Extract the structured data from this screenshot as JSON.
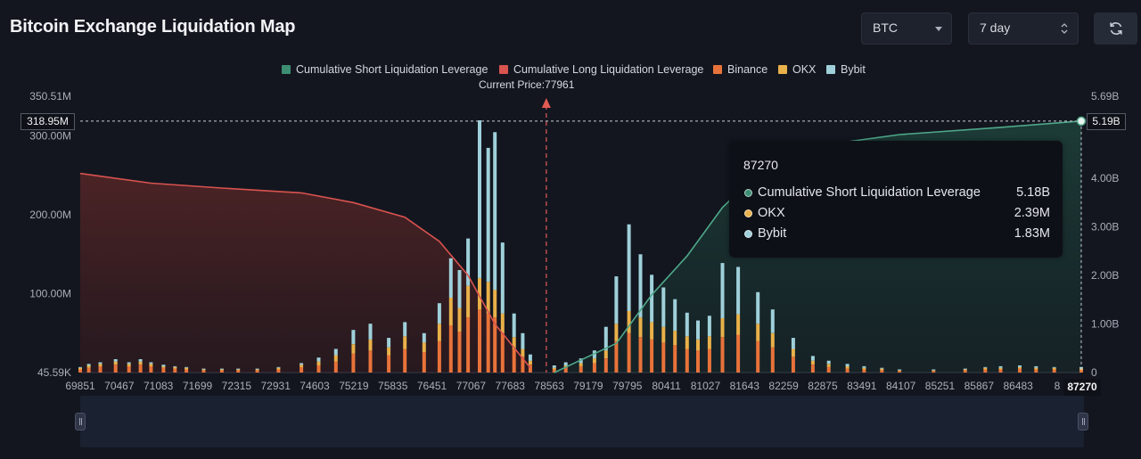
{
  "header": {
    "title": "Bitcoin Exchange Liquidation Map",
    "symbol_select": "BTC",
    "period_select": "7 day",
    "refresh_icon": "refresh-icon"
  },
  "legend": [
    {
      "label": "Cumulative Short Liquidation Leverage",
      "color": "#3d8f74"
    },
    {
      "label": "Cumulative Long Liquidation Leverage",
      "color": "#d9534f"
    },
    {
      "label": "Binance",
      "color": "#e8733a"
    },
    {
      "label": "OKX",
      "color": "#e9b14a"
    },
    {
      "label": "Bybit",
      "color": "#9fd0da"
    }
  ],
  "current_price_label": "Current Price:77961",
  "crosshair": {
    "left_value": "318.95M",
    "right_value": "5.19B",
    "x_value": "87270"
  },
  "tooltip": {
    "title": "87270",
    "rows": [
      {
        "label": "Cumulative Short Liquidation Leverage",
        "value": "5.18B",
        "color": "#3d8f74"
      },
      {
        "label": "OKX",
        "value": "2.39M",
        "color": "#e9b14a"
      },
      {
        "label": "Bybit",
        "value": "1.83M",
        "color": "#9fd0da"
      }
    ]
  },
  "chart_data": {
    "type": "bar",
    "title": "Bitcoin Exchange Liquidation Map",
    "x_tick_labels": [
      "69851",
      "70467",
      "71083",
      "71699",
      "72315",
      "72931",
      "74603",
      "75219",
      "75835",
      "76451",
      "77067",
      "77683",
      "78563",
      "79179",
      "79795",
      "80411",
      "81027",
      "81643",
      "82259",
      "82875",
      "83491",
      "84107",
      "85251",
      "85867",
      "86483",
      "8"
    ],
    "y_left_ticks": [
      "350.51M",
      "300.00M",
      "200.00M",
      "100.00M",
      "45.59K"
    ],
    "y_right_ticks": [
      "5.69B",
      "4.00B",
      "3.00B",
      "2.00B",
      "1.00B",
      "0"
    ],
    "y_left_range": [
      0,
      350510000
    ],
    "y_right_range": [
      0,
      5690000000
    ],
    "current_price": 77961,
    "x_range": [
      69851,
      87270
    ],
    "bar_groups": [
      {
        "x": 69851,
        "binance": 4,
        "okx": 2,
        "bybit": 1
      },
      {
        "x": 70000,
        "binance": 6,
        "okx": 3,
        "bybit": 2
      },
      {
        "x": 70200,
        "binance": 8,
        "okx": 3,
        "bybit": 2
      },
      {
        "x": 70467,
        "binance": 10,
        "okx": 4,
        "bybit": 3
      },
      {
        "x": 70700,
        "binance": 8,
        "okx": 3,
        "bybit": 2
      },
      {
        "x": 70900,
        "binance": 10,
        "okx": 4,
        "bybit": 3
      },
      {
        "x": 71083,
        "binance": 8,
        "okx": 3,
        "bybit": 2
      },
      {
        "x": 71300,
        "binance": 6,
        "okx": 2,
        "bybit": 2
      },
      {
        "x": 71500,
        "binance": 5,
        "okx": 2,
        "bybit": 1
      },
      {
        "x": 71699,
        "binance": 4,
        "okx": 2,
        "bybit": 1
      },
      {
        "x": 72000,
        "binance": 3,
        "okx": 1,
        "bybit": 1
      },
      {
        "x": 72315,
        "binance": 3,
        "okx": 1,
        "bybit": 1
      },
      {
        "x": 72600,
        "binance": 3,
        "okx": 1,
        "bybit": 1
      },
      {
        "x": 72931,
        "binance": 3,
        "okx": 1,
        "bybit": 1
      },
      {
        "x": 73300,
        "binance": 4,
        "okx": 2,
        "bybit": 1
      },
      {
        "x": 73700,
        "binance": 7,
        "okx": 3,
        "bybit": 2
      },
      {
        "x": 74000,
        "binance": 9,
        "okx": 5,
        "bybit": 5
      },
      {
        "x": 74300,
        "binance": 14,
        "okx": 8,
        "bybit": 8
      },
      {
        "x": 74603,
        "binance": 24,
        "okx": 12,
        "bybit": 18
      },
      {
        "x": 74900,
        "binance": 28,
        "okx": 14,
        "bybit": 20
      },
      {
        "x": 75219,
        "binance": 22,
        "okx": 10,
        "bybit": 12
      },
      {
        "x": 75500,
        "binance": 30,
        "okx": 16,
        "bybit": 18
      },
      {
        "x": 75835,
        "binance": 26,
        "okx": 12,
        "bybit": 12
      },
      {
        "x": 76100,
        "binance": 40,
        "okx": 22,
        "bybit": 26
      },
      {
        "x": 76300,
        "binance": 60,
        "okx": 35,
        "bybit": 50
      },
      {
        "x": 76451,
        "binance": 52,
        "okx": 30,
        "bybit": 48
      },
      {
        "x": 76600,
        "binance": 70,
        "okx": 40,
        "bybit": 60
      },
      {
        "x": 76800,
        "binance": 80,
        "okx": 40,
        "bybit": 200
      },
      {
        "x": 76950,
        "binance": 75,
        "okx": 40,
        "bybit": 170
      },
      {
        "x": 77067,
        "binance": 70,
        "okx": 35,
        "bybit": 200
      },
      {
        "x": 77200,
        "binance": 50,
        "okx": 25,
        "bybit": 90
      },
      {
        "x": 77400,
        "binance": 30,
        "okx": 15,
        "bybit": 30
      },
      {
        "x": 77550,
        "binance": 20,
        "okx": 10,
        "bybit": 20
      },
      {
        "x": 77683,
        "binance": 10,
        "okx": 5,
        "bybit": 8
      },
      {
        "x": 78100,
        "binance": 4,
        "okx": 2,
        "bybit": 3
      },
      {
        "x": 78300,
        "binance": 6,
        "okx": 3,
        "bybit": 4
      },
      {
        "x": 78563,
        "binance": 8,
        "okx": 4,
        "bybit": 6
      },
      {
        "x": 78800,
        "binance": 12,
        "okx": 6,
        "bybit": 10
      },
      {
        "x": 79000,
        "binance": 18,
        "okx": 10,
        "bybit": 30
      },
      {
        "x": 79179,
        "binance": 40,
        "okx": 22,
        "bybit": 60
      },
      {
        "x": 79400,
        "binance": 50,
        "okx": 28,
        "bybit": 110
      },
      {
        "x": 79600,
        "binance": 45,
        "okx": 25,
        "bybit": 80
      },
      {
        "x": 79795,
        "binance": 42,
        "okx": 22,
        "bybit": 60
      },
      {
        "x": 80000,
        "binance": 38,
        "okx": 20,
        "bybit": 50
      },
      {
        "x": 80200,
        "binance": 35,
        "okx": 18,
        "bybit": 40
      },
      {
        "x": 80411,
        "binance": 30,
        "okx": 16,
        "bybit": 30
      },
      {
        "x": 80600,
        "binance": 28,
        "okx": 14,
        "bybit": 24
      },
      {
        "x": 80800,
        "binance": 30,
        "okx": 16,
        "bybit": 26
      },
      {
        "x": 81027,
        "binance": 45,
        "okx": 24,
        "bybit": 70
      },
      {
        "x": 81300,
        "binance": 48,
        "okx": 26,
        "bybit": 60
      },
      {
        "x": 81643,
        "binance": 40,
        "okx": 22,
        "bybit": 40
      },
      {
        "x": 81900,
        "binance": 32,
        "okx": 18,
        "bybit": 30
      },
      {
        "x": 82259,
        "binance": 20,
        "okx": 10,
        "bybit": 14
      },
      {
        "x": 82600,
        "binance": 10,
        "okx": 5,
        "bybit": 6
      },
      {
        "x": 82875,
        "binance": 7,
        "okx": 4,
        "bybit": 4
      },
      {
        "x": 83200,
        "binance": 5,
        "okx": 3,
        "bybit": 3
      },
      {
        "x": 83491,
        "binance": 4,
        "okx": 2,
        "bybit": 2
      },
      {
        "x": 83800,
        "binance": 3,
        "okx": 2,
        "bybit": 1
      },
      {
        "x": 84107,
        "binance": 2,
        "okx": 1,
        "bybit": 1
      },
      {
        "x": 84700,
        "binance": 2,
        "okx": 1,
        "bybit": 1
      },
      {
        "x": 85251,
        "binance": 3,
        "okx": 1,
        "bybit": 1
      },
      {
        "x": 85600,
        "binance": 4,
        "okx": 2,
        "bybit": 1
      },
      {
        "x": 85867,
        "binance": 4,
        "okx": 2,
        "bybit": 2
      },
      {
        "x": 86200,
        "binance": 5,
        "okx": 2,
        "bybit": 2
      },
      {
        "x": 86483,
        "binance": 4,
        "okx": 2,
        "bybit": 2
      },
      {
        "x": 86800,
        "binance": 4,
        "okx": 2,
        "bybit": 1
      },
      {
        "x": 87270,
        "binance": 3,
        "okx": 2,
        "bybit": 2
      }
    ],
    "series_units": "M",
    "cumulative_long": [
      {
        "x": 69851,
        "y": 4.1
      },
      {
        "x": 71083,
        "y": 3.9
      },
      {
        "x": 72315,
        "y": 3.8
      },
      {
        "x": 73700,
        "y": 3.7
      },
      {
        "x": 74603,
        "y": 3.5
      },
      {
        "x": 75500,
        "y": 3.2
      },
      {
        "x": 76100,
        "y": 2.7
      },
      {
        "x": 76600,
        "y": 2.0
      },
      {
        "x": 77067,
        "y": 1.0
      },
      {
        "x": 77683,
        "y": 0.1
      }
    ],
    "cumulative_short": [
      {
        "x": 78100,
        "y": 0.0
      },
      {
        "x": 79179,
        "y": 0.6
      },
      {
        "x": 79795,
        "y": 1.6
      },
      {
        "x": 80411,
        "y": 2.4
      },
      {
        "x": 81027,
        "y": 3.4
      },
      {
        "x": 81643,
        "y": 4.1
      },
      {
        "x": 82875,
        "y": 4.7
      },
      {
        "x": 84107,
        "y": 4.9
      },
      {
        "x": 85867,
        "y": 5.05
      },
      {
        "x": 87270,
        "y": 5.18
      }
    ],
    "cumulative_units": "B"
  }
}
